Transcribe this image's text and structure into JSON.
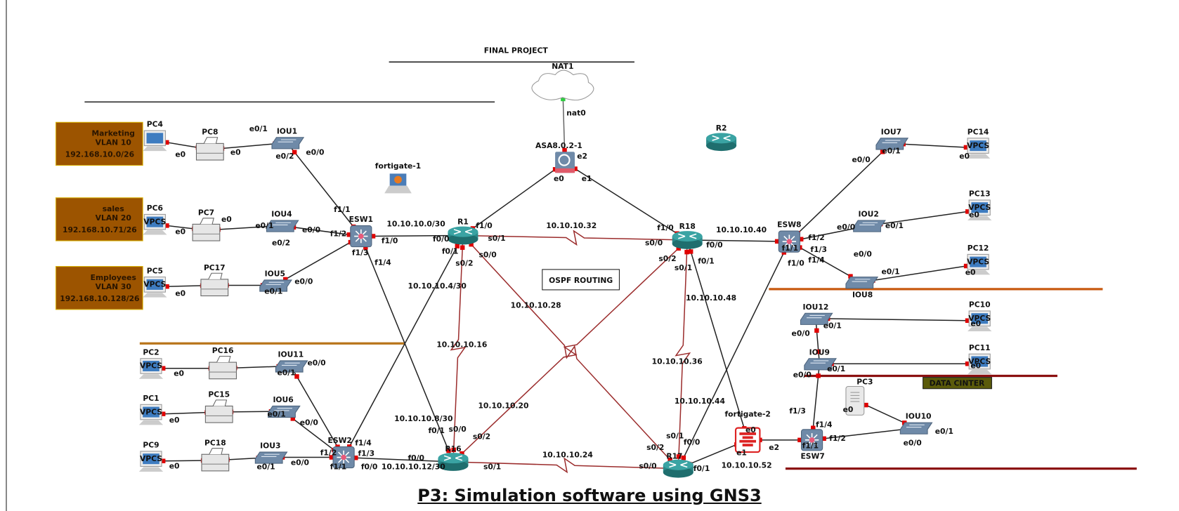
{
  "title": "FINAL PROJECT",
  "caption": "P3: Simulation software using GNS3",
  "ospf_box": "OSPF ROUTING",
  "datacenter_box": "DATA CINTER",
  "vlan_boxes": [
    {
      "name": "Marketing",
      "vlan": "VLAN 10",
      "subnet": "192.168.10.0/26"
    },
    {
      "name": "sales",
      "vlan": "VLAN 20",
      "subnet": "192.168.10.71/26"
    },
    {
      "name": "Employees",
      "vlan": "VLAN 30",
      "subnet": "192.168.10.128/26"
    }
  ],
  "colors": {
    "serial_link": "#9b2c2c",
    "ethernet_link": "#222222",
    "port": "#e00000",
    "vlan_box": "#9c5400",
    "vlan_border": "#d8b000",
    "datacenter_box": "#5a5a0a",
    "title": "#7a1a1a",
    "router": "#2b8a8a",
    "switch": "#6f8aa8",
    "divider_orange": "#c85a10",
    "divider_darkred": "#8b1010",
    "divider_brown": "#b8741a"
  },
  "vpcs_text": "VPCS",
  "nodes": [
    {
      "id": "NAT1",
      "label": "NAT1",
      "type": "cloud"
    },
    {
      "id": "ASA",
      "label": "ASA8.0.2-1",
      "type": "asa"
    },
    {
      "id": "R2",
      "label": "R2",
      "type": "router"
    },
    {
      "id": "FG1",
      "label": "fortigate-1",
      "type": "fortigate-laptop"
    },
    {
      "id": "R1",
      "label": "R1",
      "type": "router"
    },
    {
      "id": "R18",
      "label": "R18",
      "type": "router"
    },
    {
      "id": "R16",
      "label": "R16",
      "type": "router"
    },
    {
      "id": "R17",
      "label": "R17",
      "type": "router"
    },
    {
      "id": "ESW1",
      "label": "ESW1",
      "type": "multilayer-switch"
    },
    {
      "id": "ESW2",
      "label": "ESW2",
      "type": "multilayer-switch"
    },
    {
      "id": "ESW8",
      "label": "ESW8",
      "type": "multilayer-switch"
    },
    {
      "id": "ESW7",
      "label": "ESW7",
      "type": "multilayer-switch"
    },
    {
      "id": "FG2",
      "label": "fortigate-2",
      "type": "firewall"
    },
    {
      "id": "IOU1",
      "label": "IOU1",
      "type": "switch"
    },
    {
      "id": "IOU4",
      "label": "IOU4",
      "type": "switch"
    },
    {
      "id": "IOU5",
      "label": "IOU5",
      "type": "switch"
    },
    {
      "id": "IOU11",
      "label": "IOU11",
      "type": "switch"
    },
    {
      "id": "IOU6",
      "label": "IOU6",
      "type": "switch"
    },
    {
      "id": "IOU3",
      "label": "IOU3",
      "type": "switch"
    },
    {
      "id": "IOU7",
      "label": "IOU7",
      "type": "switch"
    },
    {
      "id": "IOU2",
      "label": "IOU2",
      "type": "switch"
    },
    {
      "id": "IOU8",
      "label": "IOU8",
      "type": "switch"
    },
    {
      "id": "IOU12",
      "label": "IOU12",
      "type": "switch"
    },
    {
      "id": "IOU9",
      "label": "IOU9",
      "type": "switch"
    },
    {
      "id": "IOU10",
      "label": "IOU10",
      "type": "switch"
    },
    {
      "id": "PC4",
      "label": "PC4",
      "type": "pc"
    },
    {
      "id": "PC8",
      "label": "PC8",
      "type": "printer"
    },
    {
      "id": "PC6",
      "label": "PC6",
      "type": "vpcs"
    },
    {
      "id": "PC7",
      "label": "PC7",
      "type": "printer"
    },
    {
      "id": "PC5",
      "label": "PC5",
      "type": "vpcs"
    },
    {
      "id": "PC17",
      "label": "PC17",
      "type": "printer"
    },
    {
      "id": "PC2",
      "label": "PC2",
      "type": "vpcs"
    },
    {
      "id": "PC16",
      "label": "PC16",
      "type": "printer"
    },
    {
      "id": "PC1",
      "label": "PC1",
      "type": "vpcs"
    },
    {
      "id": "PC15",
      "label": "PC15",
      "type": "printer"
    },
    {
      "id": "PC9",
      "label": "PC9",
      "type": "vpcs"
    },
    {
      "id": "PC18",
      "label": "PC18",
      "type": "printer"
    },
    {
      "id": "PC14",
      "label": "PC14",
      "type": "vpcs"
    },
    {
      "id": "PC13",
      "label": "PC13",
      "type": "vpcs"
    },
    {
      "id": "PC12",
      "label": "PC12",
      "type": "vpcs"
    },
    {
      "id": "PC10",
      "label": "PC10",
      "type": "vpcs"
    },
    {
      "id": "PC11",
      "label": "PC11",
      "type": "vpcs"
    },
    {
      "id": "PC3",
      "label": "PC3",
      "type": "server"
    }
  ],
  "links": [
    {
      "from": "NAT1",
      "to": "ASA",
      "type": "nat"
    },
    {
      "from": "ASA",
      "to": "R1",
      "type": "ethernet"
    },
    {
      "from": "ASA",
      "to": "R18",
      "type": "ethernet"
    },
    {
      "from": "ESW1",
      "to": "R1",
      "type": "ethernet"
    },
    {
      "from": "IOU1",
      "to": "ESW1",
      "type": "ethernet"
    },
    {
      "from": "IOU4",
      "to": "ESW1",
      "type": "ethernet"
    },
    {
      "from": "IOU5",
      "to": "ESW1",
      "type": "ethernet"
    },
    {
      "from": "ESW1",
      "to": "R16",
      "type": "ethernet"
    },
    {
      "from": "ESW2",
      "to": "R1",
      "type": "ethernet"
    },
    {
      "from": "ESW2",
      "to": "R16",
      "type": "ethernet"
    },
    {
      "from": "IOU11",
      "to": "ESW2",
      "type": "ethernet"
    },
    {
      "from": "IOU6",
      "to": "ESW2",
      "type": "ethernet"
    },
    {
      "from": "IOU3",
      "to": "ESW2",
      "type": "ethernet"
    },
    {
      "from": "PC4",
      "to": "PC8",
      "type": "ethernet"
    },
    {
      "from": "PC8",
      "to": "IOU1",
      "type": "ethernet"
    },
    {
      "from": "PC6",
      "to": "PC7",
      "type": "ethernet"
    },
    {
      "from": "PC7",
      "to": "IOU4",
      "type": "ethernet"
    },
    {
      "from": "PC5",
      "to": "PC17",
      "type": "ethernet"
    },
    {
      "from": "PC17",
      "to": "IOU5",
      "type": "ethernet"
    },
    {
      "from": "PC2",
      "to": "PC16",
      "type": "ethernet"
    },
    {
      "from": "PC16",
      "to": "IOU11",
      "type": "ethernet"
    },
    {
      "from": "PC1",
      "to": "PC15",
      "type": "ethernet"
    },
    {
      "from": "PC15",
      "to": "IOU6",
      "type": "ethernet"
    },
    {
      "from": "PC9",
      "to": "PC18",
      "type": "ethernet"
    },
    {
      "from": "PC18",
      "to": "IOU3",
      "type": "ethernet"
    },
    {
      "from": "R1",
      "to": "R18",
      "type": "serial"
    },
    {
      "from": "R1",
      "to": "R16",
      "type": "serial"
    },
    {
      "from": "R1",
      "to": "R17",
      "type": "serial"
    },
    {
      "from": "R18",
      "to": "R16",
      "type": "serial"
    },
    {
      "from": "R18",
      "to": "R17",
      "type": "serial"
    },
    {
      "from": "R16",
      "to": "R17",
      "type": "serial"
    },
    {
      "from": "R18",
      "to": "ESW8",
      "type": "ethernet"
    },
    {
      "from": "ESW8",
      "to": "IOU7",
      "type": "ethernet"
    },
    {
      "from": "ESW8",
      "to": "IOU2",
      "type": "ethernet"
    },
    {
      "from": "ESW8",
      "to": "IOU8",
      "type": "ethernet"
    },
    {
      "from": "ESW8",
      "to": "R17",
      "type": "ethernet"
    },
    {
      "from": "R18",
      "to": "FG2",
      "type": "ethernet"
    },
    {
      "from": "R17",
      "to": "FG2",
      "type": "ethernet"
    },
    {
      "from": "FG2",
      "to": "ESW7",
      "type": "ethernet"
    },
    {
      "from": "ESW7",
      "to": "IOU9",
      "type": "ethernet"
    },
    {
      "from": "IOU12",
      "to": "IOU9",
      "type": "ethernet"
    },
    {
      "from": "ESW7",
      "to": "IOU10",
      "type": "ethernet"
    },
    {
      "from": "PC3",
      "to": "IOU10",
      "type": "ethernet"
    },
    {
      "from": "IOU7",
      "to": "PC14",
      "type": "ethernet"
    },
    {
      "from": "IOU2",
      "to": "PC13",
      "type": "ethernet"
    },
    {
      "from": "IOU8",
      "to": "PC12",
      "type": "ethernet"
    },
    {
      "from": "IOU12",
      "to": "PC10",
      "type": "ethernet"
    },
    {
      "from": "IOU9",
      "to": "PC11",
      "type": "ethernet"
    }
  ],
  "labels": [
    "e0",
    "e0/1",
    "e0",
    "e0/2",
    "e0/0",
    "e0",
    "e0",
    "e0/1",
    "e0/0",
    "e0/2",
    "f1/1",
    "f1/2",
    "f1/0",
    "f1/3",
    "f1/4",
    "e0",
    "e0/1",
    "e0/0",
    "10.10.10.0/30",
    "f0/0",
    "f1/0",
    "s0/1",
    "f0/1",
    "s0/2",
    "s0/0",
    "10.10.10.32",
    "f1/0",
    "s0/0",
    "f0/0",
    "s0/2",
    "s0/1",
    "f0/1",
    "10.10.10.40",
    "nat0",
    "e2",
    "e0",
    "e1",
    "10.10.10.4/30",
    "10.10.10.28",
    "10.10.10.16",
    "10.10.10.20",
    "10.10.10.8/30",
    "f0/1",
    "s0/0",
    "s0/2",
    "f0/0",
    "10.10.10.12/30",
    "f0/0",
    "s0/1",
    "10.10.10.24",
    "10.10.10.48",
    "10.10.10.36",
    "10.10.10.44",
    "s0/1",
    "f0/0",
    "s0/2",
    "s0/0",
    "f0/1",
    "e0",
    "e1",
    "e2",
    "10.10.10.52",
    "f1/3",
    "f1/4",
    "f1/1",
    "f1/2",
    "e0",
    "e0/1",
    "e0/0",
    "e0/1",
    "e0/0",
    "e0/1",
    "e0/0",
    "e0",
    "e0",
    "e0/0",
    "e0/1",
    "e0",
    "e0/0",
    "e0/1",
    "e0",
    "f1/2",
    "f1/3",
    "f1/4",
    "f1/1",
    "f1/0",
    "e0/0",
    "e0/1",
    "e0",
    "e0",
    "e0/1",
    "e0/0",
    "e0",
    "e0/1",
    "e0/0",
    "e0",
    "e0/1",
    "e0/0",
    "f1/2",
    "f1/4",
    "f1/3",
    "f1/1"
  ]
}
